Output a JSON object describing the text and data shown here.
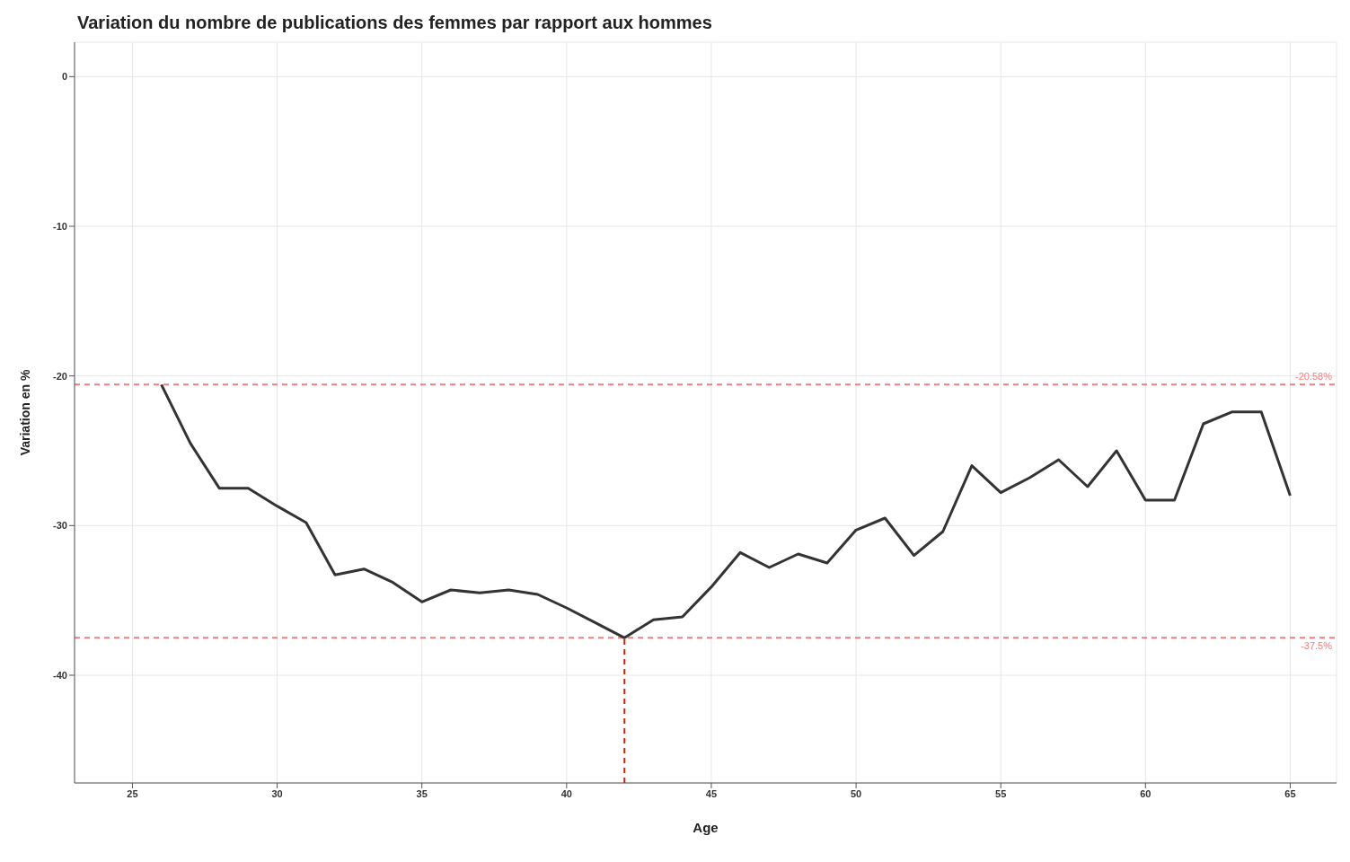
{
  "chart_data": {
    "type": "line",
    "title": "Variation du nombre de publications des femmes par rapport aux hommes",
    "xlabel": "Age",
    "ylabel": "Variation en %",
    "x": [
      26,
      27,
      28,
      29,
      30,
      31,
      32,
      33,
      34,
      35,
      36,
      37,
      38,
      39,
      40,
      41,
      42,
      43,
      44,
      45,
      46,
      47,
      48,
      49,
      50,
      51,
      52,
      53,
      54,
      55,
      56,
      57,
      58,
      59,
      60,
      61,
      62,
      63,
      64,
      65
    ],
    "series": [
      {
        "color": "#333333",
        "values": [
          -20.58,
          -24.5,
          -27.5,
          -27.5,
          -28.7,
          -29.8,
          -33.3,
          -32.9,
          -33.8,
          -35.1,
          -34.3,
          -34.5,
          -34.3,
          -34.6,
          -35.5,
          -36.5,
          -37.5,
          -36.3,
          -36.1,
          -34.1,
          -31.8,
          -32.8,
          -31.9,
          -32.5,
          -30.3,
          -29.5,
          -32.0,
          -30.4,
          -26.0,
          -27.8,
          -26.8,
          -25.6,
          -27.4,
          -25.0,
          -28.3,
          -28.3,
          -23.2,
          -22.4,
          -22.4,
          -28.0
        ]
      }
    ],
    "xlim": [
      23,
      66.6
    ],
    "xticks": [
      25,
      30,
      35,
      40,
      45,
      50,
      55,
      60,
      65
    ],
    "ylim": [
      -47.2,
      2.3
    ],
    "yticks": [
      -40,
      -30,
      -20,
      -10,
      0
    ],
    "ref_lines": [
      {
        "axis": "y",
        "value": -20.58,
        "label": "-20.58%",
        "color": "#f08080",
        "line_style": "dashed"
      },
      {
        "axis": "y",
        "value": -37.5,
        "label": "-37.5%",
        "color": "#f08080",
        "line_style": "dashed"
      },
      {
        "axis": "x",
        "value": 42,
        "label": null,
        "color": "#cc2200",
        "line_style": "dashed"
      }
    ],
    "grid": true,
    "legend": false,
    "marker": "none",
    "line_style": "solid"
  }
}
